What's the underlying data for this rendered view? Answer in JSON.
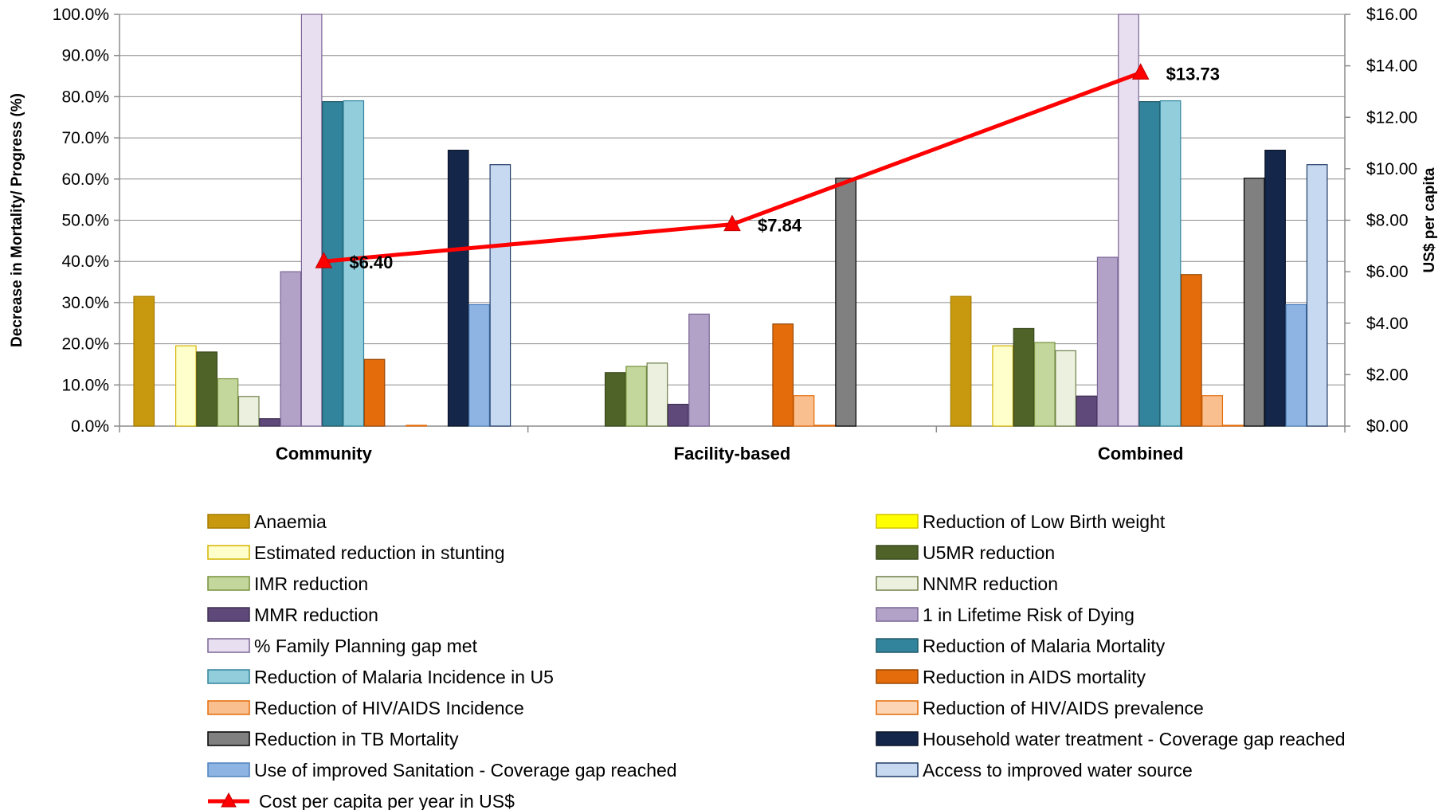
{
  "chart_data": {
    "type": "bar",
    "categories": [
      "Community",
      "Facility-based",
      "Combined"
    ],
    "y_left": {
      "label": "Decrease in Mortality/ Progress (%)",
      "ticks": [
        "0.0%",
        "10.0%",
        "20.0%",
        "30.0%",
        "40.0%",
        "50.0%",
        "60.0%",
        "70.0%",
        "80.0%",
        "90.0%",
        "100.0%"
      ],
      "range": [
        0,
        100
      ]
    },
    "y_right": {
      "label": "US$ per capita",
      "ticks": [
        "$0.00",
        "$2.00",
        "$4.00",
        "$6.00",
        "$8.00",
        "$10.00",
        "$12.00",
        "$14.00",
        "$16.00"
      ],
      "range": [
        0,
        16
      ]
    },
    "grid": true,
    "legend_position": "bottom",
    "series": [
      {
        "name": "Anaemia",
        "color": "#c8990e",
        "border": "#a67c00",
        "values": [
          31.5,
          null,
          31.5
        ]
      },
      {
        "name": "Reduction of Low Birth weight",
        "color": "#ffff00",
        "border": "#d4c200",
        "values": [
          null,
          null,
          null
        ]
      },
      {
        "name": "Estimated reduction in stunting",
        "color": "#ffffcc",
        "border": "#d4b400",
        "values": [
          19.5,
          null,
          19.5
        ]
      },
      {
        "name": "U5MR reduction",
        "color": "#4f6228",
        "border": "#3a4a1c",
        "values": [
          18.0,
          13.0,
          23.7
        ]
      },
      {
        "name": "IMR reduction",
        "color": "#c3d69b",
        "border": "#76923c",
        "values": [
          11.5,
          14.5,
          20.3
        ]
      },
      {
        "name": "NNMR reduction",
        "color": "#ebf1de",
        "border": "#6e7f4a",
        "values": [
          7.2,
          15.3,
          18.3
        ]
      },
      {
        "name": "MMR reduction",
        "color": "#5f497a",
        "border": "#3f3052",
        "values": [
          1.8,
          5.3,
          7.3
        ]
      },
      {
        "name": "1 in Lifetime Risk of Dying",
        "color": "#b3a2c7",
        "border": "#7a6496",
        "values": [
          37.5,
          27.2,
          41.0
        ]
      },
      {
        "name": "% Family Planning gap met",
        "color": "#e8e0f0",
        "border": "#7a6496",
        "values": [
          100.0,
          null,
          100.0
        ]
      },
      {
        "name": "Reduction of Malaria Mortality",
        "color": "#31849b",
        "border": "#215968",
        "values": [
          78.8,
          null,
          78.8
        ]
      },
      {
        "name": "Reduction of Malaria  Incidence in U5",
        "color": "#92cddc",
        "border": "#31849b",
        "values": [
          79.0,
          null,
          79.0
        ]
      },
      {
        "name": "Reduction in AIDS mortality",
        "color": "#e46c0a",
        "border": "#984807",
        "values": [
          16.2,
          24.8,
          36.8
        ]
      },
      {
        "name": "Reduction of HIV/AIDS Incidence",
        "color": "#fabf8f",
        "border": "#e46c0a",
        "values": [
          null,
          7.4,
          7.4
        ]
      },
      {
        "name": "Reduction of HIV/AIDS prevalence",
        "color": "#fcd5b4",
        "border": "#e46c0a",
        "values": [
          0.2,
          0.2,
          0.2
        ]
      },
      {
        "name": "Reduction in TB Mortality",
        "color": "#808080",
        "border": "#000000",
        "values": [
          null,
          60.2,
          60.2
        ]
      },
      {
        "name": "Household water treatment - Coverage gap reached",
        "color": "#14264a",
        "border": "#0a1428",
        "values": [
          67.0,
          null,
          67.0
        ]
      },
      {
        "name": "Use of improved Sanitation - Coverage gap reached",
        "color": "#8eb4e3",
        "border": "#4f81bd",
        "values": [
          29.5,
          null,
          29.5
        ]
      },
      {
        "name": "Access to improved water source",
        "color": "#c6d9f1",
        "border": "#1f3b66",
        "values": [
          63.5,
          null,
          63.5
        ]
      }
    ],
    "line_series": {
      "name": "Cost per capita per year in US$",
      "axis": "right",
      "color": "#ff0000",
      "values": [
        6.4,
        7.84,
        13.73
      ],
      "labels": [
        "$6.40",
        "$7.84",
        "$13.73"
      ]
    }
  }
}
